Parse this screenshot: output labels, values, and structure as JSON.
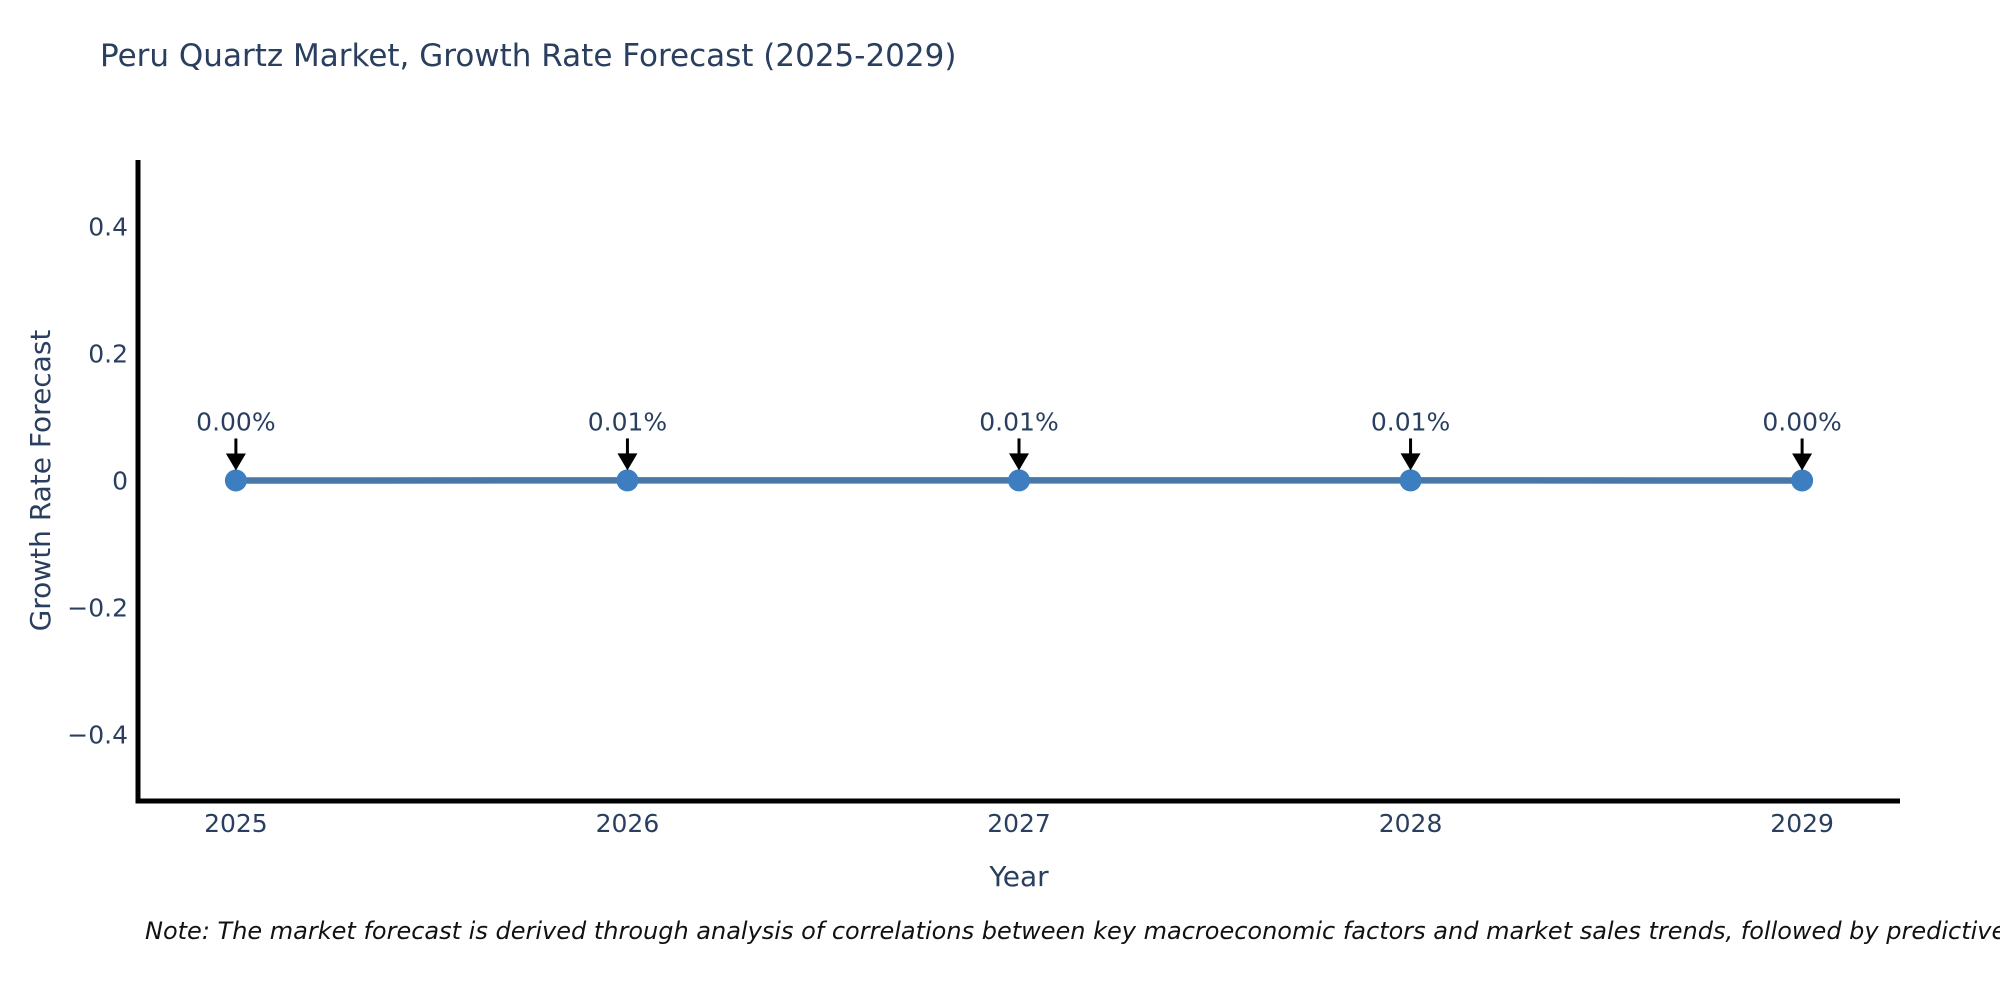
{
  "title": "Peru Quartz Market, Growth Rate Forecast (2025-2029)",
  "note": "Note: The market forecast is derived through analysis of correlations between key macroeconomic factors and market sales trends, followed by predictive modeling to project future sales.",
  "chart_data": {
    "type": "line",
    "title": "Peru Quartz Market, Growth Rate Forecast (2025-2029)",
    "xlabel": "Year",
    "ylabel": "Growth Rate Forecast",
    "x": [
      2025,
      2026,
      2027,
      2028,
      2029
    ],
    "y": [
      0.0,
      0.0001,
      0.0001,
      0.0001,
      0.0
    ],
    "point_labels": [
      "0.00%",
      "0.01%",
      "0.01%",
      "0.01%",
      "0.00%"
    ],
    "xticks": [
      2025,
      2026,
      2027,
      2028,
      2029
    ],
    "xtick_labels": [
      "2025",
      "2026",
      "2027",
      "2028",
      "2029"
    ],
    "yticks": [
      0.4,
      0.2,
      0,
      -0.2,
      -0.4
    ],
    "ytick_labels": [
      "0.4",
      "0.2",
      "0",
      "−0.2",
      "−0.4"
    ],
    "xlim": [
      2024.75,
      2029.25
    ],
    "ylim": [
      -0.505,
      0.505
    ],
    "grid": false,
    "legend": false,
    "annotations_have_arrows": true,
    "colors": {
      "line": "#4878a8",
      "marker": "#3c7ec0",
      "axis": "#000000",
      "tick_text": "#2a3f5f",
      "annotation_text": "#2a3f5f",
      "arrow": "#000000",
      "background": "#ffffff"
    }
  }
}
